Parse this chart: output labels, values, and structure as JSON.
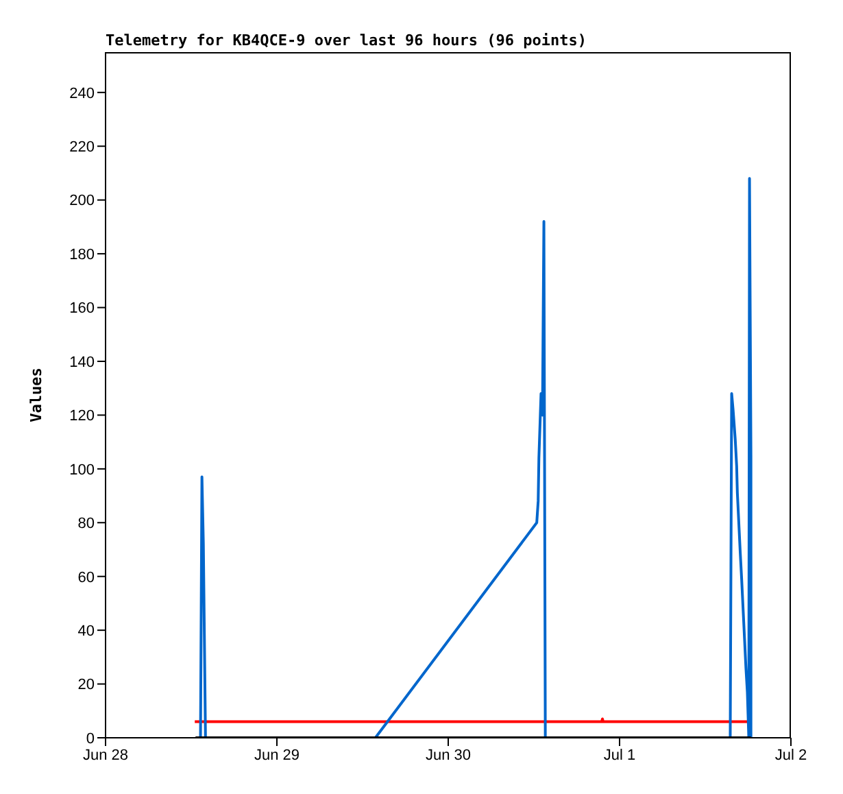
{
  "chart_data": {
    "type": "line",
    "title": "Telemetry for KB4QCE-9 over last 96 hours (96 points)",
    "ylabel": "Values",
    "xlim": [
      "--06-28",
      "--07-02"
    ],
    "xticks": [
      {
        "value": "--06-28",
        "label": "Jun 28"
      },
      {
        "value": "--06-29",
        "label": "Jun 29"
      },
      {
        "value": "--06-30",
        "label": "Jun 30"
      },
      {
        "value": "--07-01",
        "label": "Jul 1"
      },
      {
        "value": "--07-02",
        "label": "Jul 2"
      }
    ],
    "ylim": [
      0,
      255
    ],
    "yticks": [
      0,
      20,
      40,
      60,
      80,
      100,
      120,
      140,
      160,
      180,
      200,
      220,
      240
    ],
    "grid": false,
    "legend": false,
    "marker": "none",
    "line_style": "solid",
    "series": [
      {
        "color": "#ff0000",
        "x": [
          "--06-28T12:30",
          "--06-30T21:30",
          "--06-30T21:36",
          "--06-30T21:42",
          "--07-01T17:54"
        ],
        "values": [
          6,
          6,
          7,
          6,
          6
        ]
      },
      {
        "color": "#0066cc",
        "x": [
          "--06-28T13:18",
          "--06-28T13:24",
          "--06-28T13:30",
          "--06-28T13:42",
          "--06-28T13:54",
          "--06-28T14:00",
          "--06-29T13:48",
          "--06-30T12:24",
          "--06-30T12:36",
          "--06-30T12:42",
          "--06-30T12:54",
          "--06-30T13:00",
          "--06-30T13:12",
          "--06-30T13:24",
          "--06-30T13:30",
          "--06-30T13:36",
          "--07-01T15:30",
          "--07-01T15:36",
          "--07-01T15:42",
          "--07-01T15:54",
          "--07-01T16:12",
          "--07-01T16:24",
          "--07-01T16:30",
          "--07-01T16:42",
          "--07-01T16:54",
          "--07-01T17:06",
          "--07-01T17:18",
          "--07-01T17:30",
          "--07-01T17:42",
          "--07-01T17:54",
          "--07-01T18:06",
          "--07-01T18:12",
          "--07-01T18:24",
          "--07-01T18:24"
        ],
        "values": [
          0,
          48,
          97,
          72,
          24,
          0,
          0,
          80,
          88,
          104,
          120,
          128,
          120,
          192,
          96,
          0,
          0,
          64,
          128,
          122,
          111,
          101,
          91,
          80,
          69,
          59,
          48,
          37,
          26,
          17,
          0,
          208,
          105,
          0
        ]
      },
      {
        "color": "#000000",
        "x": [
          "--06-28T12:36",
          "--07-01T18:24"
        ],
        "values": [
          0,
          0
        ]
      }
    ]
  }
}
